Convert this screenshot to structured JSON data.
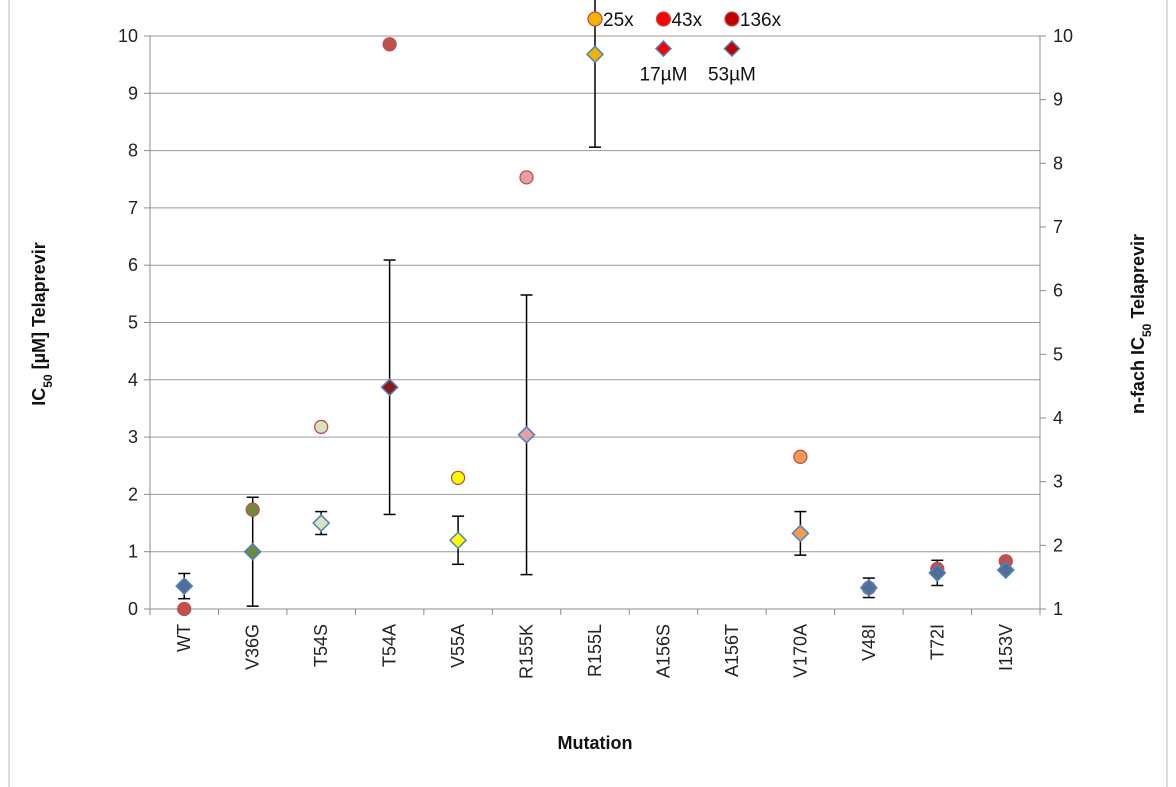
{
  "chart_data": {
    "type": "scatter",
    "categories": [
      "WT",
      "V36G",
      "T54S",
      "T54A",
      "V55A",
      "R155K",
      "R155L",
      "A156S",
      "A156T",
      "V170A",
      "V48I",
      "T72I",
      "I153V"
    ],
    "xlabel": "Mutation",
    "ylabel_left": {
      "prefix": "IC",
      "sub": "50",
      "suffix": " [µM] Telaprevir"
    },
    "ylabel_right": {
      "prefix": "n-fach IC",
      "sub": "50",
      "suffix": " Telaprevir"
    },
    "ylim_left": [
      0,
      10
    ],
    "ylim_right": [
      1,
      10
    ],
    "yticks_left": [
      "0",
      "1",
      "2",
      "3",
      "4",
      "5",
      "6",
      "7",
      "8",
      "9",
      "10"
    ],
    "yticks_right": [
      "1",
      "2",
      "3",
      "4",
      "5",
      "6",
      "7",
      "8",
      "9",
      "10"
    ],
    "grid": true,
    "series": [
      {
        "axis": "left",
        "marker": "diamond",
        "values": [
          0.4,
          1.0,
          1.5,
          3.87,
          1.2,
          3.04,
          9.68,
          null,
          null,
          1.32,
          0.37,
          0.63,
          0.68
        ],
        "errors": [
          0.22,
          0.95,
          0.2,
          2.22,
          0.42,
          2.44,
          1.62,
          null,
          null,
          0.38,
          0.17,
          0.22,
          0.0
        ],
        "colors": [
          "#4f6f94",
          "#6e8b3d",
          "#d7e4bd",
          "#8b1a1a",
          "#ffff00",
          "#e6a0a0",
          "#f0b400",
          null,
          null,
          "#f39c4f",
          "#4f6f94",
          "#4f6f94",
          "#4f6f94"
        ]
      },
      {
        "axis": "right",
        "marker": "circle",
        "values": [
          1.0,
          2.56,
          3.86,
          9.87,
          3.06,
          7.78,
          null,
          null,
          null,
          3.39,
          1.33,
          1.63,
          1.75
        ],
        "colors": [
          "#c0504d",
          "#6e8b3d",
          "#d7e4bd",
          "#c0504d",
          "#ffff00",
          "#e6a0a0",
          null,
          null,
          null,
          "#f39c4f",
          "#4f6f94",
          "#c0504d",
          "#c0504d"
        ]
      }
    ],
    "offscale_markers": [
      {
        "category": "R155L",
        "shape": "circle",
        "color": "#f0b400",
        "label": "25x"
      },
      {
        "category": "A156S",
        "shape": "circle",
        "color": "#ff0000",
        "label": "43x"
      },
      {
        "category": "A156T",
        "shape": "circle",
        "color": "#c00000",
        "label": "136x"
      },
      {
        "category": "A156S",
        "shape": "diamond",
        "color": "#ff0000",
        "label": "17µM"
      },
      {
        "category": "A156T",
        "shape": "diamond",
        "color": "#c00000",
        "label": "53µM"
      }
    ]
  }
}
